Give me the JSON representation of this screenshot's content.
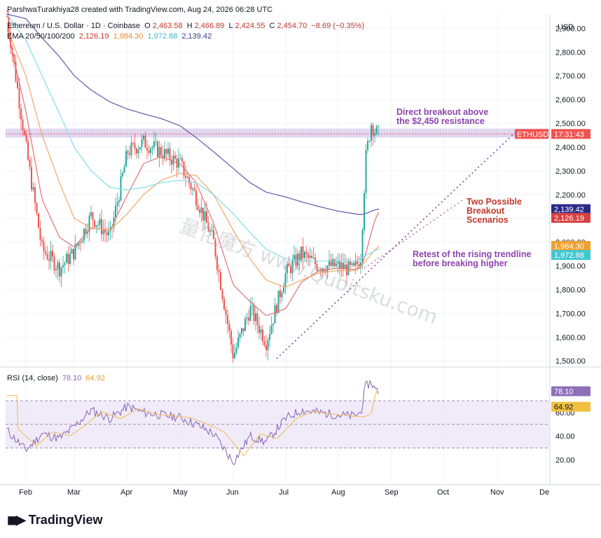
{
  "header": {
    "credit": "ParshwaTurakhiya28 created with TradingView.com, Aug 24, 2026 06:28 UTC",
    "symbol_line": "Ethereum / U.S. Dollar · 1D · Coinbase",
    "ohlc": {
      "o_label": "O",
      "o": "2,463.58",
      "h_label": "H",
      "h": "2,466.89",
      "l_label": "L",
      "l": "2,424.55",
      "c_label": "C",
      "c": "2,454.70",
      "change": "−8.69 (−0.35%)"
    },
    "ema_label": "EMA 20/50/100/200",
    "ema_values": [
      "2,126.19",
      "1,984.30",
      "1,972.88",
      "2,139.42"
    ]
  },
  "currency": "USD",
  "price_axis_labels": [
    "2,900.00",
    "2,800.00",
    "2,700.00",
    "2,600.00",
    "2,500.00",
    "2,400.00",
    "2,300.00",
    "2,200.00",
    "2,100.00",
    "2,000.00",
    "1,900.00",
    "1,800.00",
    "1,700.00",
    "1,600.00",
    "1,500.00"
  ],
  "price_tags": {
    "ethusd_label": "ETHUSD",
    "ethusd_time": "17:31:43",
    "ema200": "2,139.42",
    "ema20": "2,126.19",
    "ema50": "1,984.30",
    "ema100": "1,972.88"
  },
  "rsi": {
    "label": "RSI (14, close)",
    "value": "78.10",
    "ma": "64.92",
    "axis_labels": [
      "60.00",
      "40.00",
      "20.00"
    ]
  },
  "time_axis_labels": [
    "Feb",
    "Mar",
    "Apr",
    "May",
    "Jun",
    "Jul",
    "Aug",
    "Sep",
    "Oct",
    "Nov",
    "De"
  ],
  "annotations": {
    "breakout": "Direct breakout above the $2,450 resistance",
    "scenarios": "Two Possible Breakout Scenarios",
    "retest": "Retest of the rising trendline before breaking higher"
  },
  "watermark": "量化魔方 www.Qubitsku.com",
  "brand": "TradingView",
  "colors": {
    "up": "#26a69a",
    "down": "#ef5350",
    "ema20": "#e57373",
    "ema50": "#f0a868",
    "ema100": "#80deea",
    "ema200": "#5c5ca8",
    "resistance": "#c8b8e8",
    "trendline": "#7b3fa0",
    "rsi": "#8f6fb8",
    "rsi_ma": "#f0c060",
    "ann_purple": "#8e44ad",
    "ann_red": "#c0392b"
  },
  "chart_data": {
    "type": "candlestick",
    "title": "Ethereum / U.S. Dollar · 1D · Coinbase",
    "ylim": [
      1480,
      2960
    ],
    "resistance_level": 2450,
    "series": [
      {
        "name": "ETHUSD price (approx. daily closes)",
        "x": [
          "Jan 23",
          "Feb 1",
          "Feb 10",
          "Feb 20",
          "Mar 1",
          "Mar 10",
          "Mar 20",
          "Apr 1",
          "Apr 10",
          "Apr 20",
          "May 1",
          "May 10",
          "May 20",
          "Jun 1",
          "Jun 10",
          "Jun 20",
          "Jul 1",
          "Jul 10",
          "Jul 20",
          "Aug 1",
          "Aug 10",
          "Aug 15",
          "Aug 18",
          "Aug 20",
          "Aug 22",
          "Aug 24"
        ],
        "values": [
          2950,
          2400,
          1970,
          1890,
          1960,
          2110,
          2020,
          2380,
          2420,
          2380,
          2330,
          2190,
          2000,
          1520,
          1720,
          1580,
          1870,
          1950,
          1900,
          1900,
          1880,
          1940,
          2350,
          2500,
          2460,
          2455
        ]
      },
      {
        "name": "EMA 20",
        "values": [
          2900,
          2550,
          2180,
          2020,
          1980,
          2060,
          2050,
          2200,
          2330,
          2360,
          2330,
          2250,
          2080,
          1820,
          1750,
          1690,
          1720,
          1830,
          1880,
          1890,
          1885,
          1890,
          1950,
          2040,
          2100,
          2126
        ]
      },
      {
        "name": "EMA 50",
        "values": [
          2900,
          2700,
          2450,
          2250,
          2100,
          2060,
          2050,
          2120,
          2200,
          2260,
          2290,
          2280,
          2200,
          2050,
          1930,
          1840,
          1810,
          1840,
          1870,
          1880,
          1880,
          1900,
          1920,
          1950,
          1970,
          1984
        ]
      },
      {
        "name": "EMA 100",
        "values": [
          2960,
          2850,
          2700,
          2540,
          2400,
          2300,
          2230,
          2220,
          2230,
          2250,
          2260,
          2250,
          2200,
          2120,
          2040,
          1970,
          1930,
          1920,
          1920,
          1920,
          1920,
          1930,
          1945,
          1955,
          1965,
          1973
        ]
      },
      {
        "name": "EMA 200",
        "values": [
          2960,
          2940,
          2860,
          2780,
          2700,
          2640,
          2590,
          2560,
          2540,
          2520,
          2490,
          2440,
          2380,
          2310,
          2250,
          2210,
          2190,
          2170,
          2150,
          2130,
          2120,
          2115,
          2120,
          2130,
          2136,
          2139
        ]
      }
    ],
    "rsi_series": {
      "name": "RSI (14, close)",
      "values": [
        45,
        28,
        42,
        38,
        48,
        62,
        55,
        65,
        60,
        58,
        56,
        50,
        42,
        18,
        40,
        35,
        55,
        62,
        60,
        58,
        57,
        60,
        82,
        86,
        79,
        78.1
      ]
    }
  }
}
